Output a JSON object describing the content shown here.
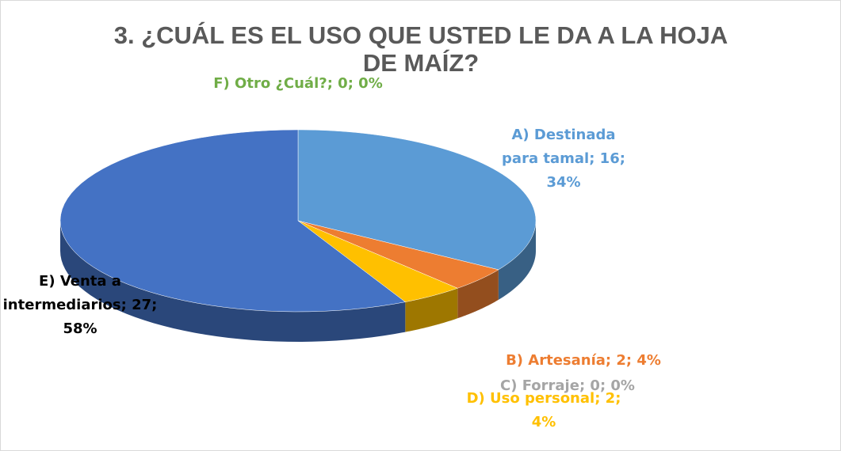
{
  "chart_data": {
    "type": "pie",
    "title": "3.    ¿CUÁL ES EL USO QUE USTED LE DA A LA HOJA DE MAÍZ?",
    "categories": [
      "A) Destinada para tamal",
      "B) Artesanía",
      "C) Forraje",
      "D) Uso personal",
      "E) Venta a intermediarios",
      "F) Otro ¿Cuál?"
    ],
    "values": [
      16,
      2,
      0,
      2,
      27,
      0
    ],
    "percents": [
      34,
      4,
      0,
      4,
      58,
      0
    ],
    "percent_labels": [
      "34%",
      "4%",
      "0%",
      "4%",
      "58%",
      "0%"
    ],
    "separator": "; ",
    "colors": [
      "#5b9bd5",
      "#ed7d31",
      "#a5a5a5",
      "#ffc000",
      "#4472c4",
      "#70ad47"
    ]
  }
}
